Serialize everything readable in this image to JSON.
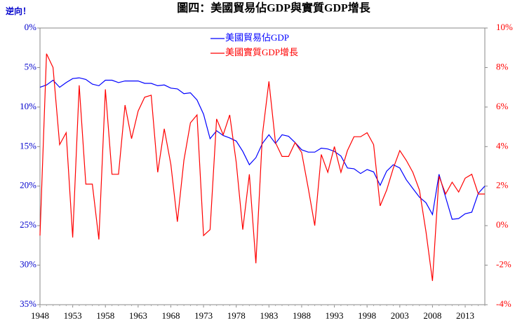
{
  "chart_data": {
    "type": "line",
    "title": "圖四：美國貿易佔GDP與實質GDP增長",
    "annotation": "逆向！",
    "x": [
      1948,
      1949,
      1950,
      1951,
      1952,
      1953,
      1954,
      1955,
      1956,
      1957,
      1958,
      1959,
      1960,
      1961,
      1962,
      1963,
      1964,
      1965,
      1966,
      1967,
      1968,
      1969,
      1970,
      1971,
      1972,
      1973,
      1974,
      1975,
      1976,
      1977,
      1978,
      1979,
      1980,
      1981,
      1982,
      1983,
      1984,
      1985,
      1986,
      1987,
      1988,
      1989,
      1990,
      1991,
      1992,
      1993,
      1994,
      1995,
      1996,
      1997,
      1998,
      1999,
      2000,
      2001,
      2002,
      2003,
      2004,
      2005,
      2006,
      2007,
      2008,
      2009,
      2010,
      2011,
      2012,
      2013,
      2014,
      2015,
      2016
    ],
    "xlim": [
      1948,
      2016
    ],
    "xticks": [
      1948,
      1953,
      1958,
      1963,
      1968,
      1973,
      1978,
      1983,
      1988,
      1993,
      1998,
      2003,
      2008,
      2013
    ],
    "ylim": [
      0,
      35
    ],
    "y_inverted": true,
    "yticks": [
      {
        "value": 0,
        "label": "0%"
      },
      {
        "value": 5,
        "label": "5%"
      },
      {
        "value": 10,
        "label": "10%"
      },
      {
        "value": 15,
        "label": "15%"
      },
      {
        "value": 20,
        "label": "20%"
      },
      {
        "value": 25,
        "label": "25%"
      },
      {
        "value": 30,
        "label": "30%"
      },
      {
        "value": 35,
        "label": "35%"
      }
    ],
    "y2lim": [
      -4,
      10
    ],
    "y2ticks": [
      {
        "value": -4,
        "label": "-4%"
      },
      {
        "value": -2,
        "label": "-2%"
      },
      {
        "value": 0,
        "label": "0%"
      },
      {
        "value": 2,
        "label": "2%"
      },
      {
        "value": 4,
        "label": "4%"
      },
      {
        "value": 6,
        "label": "6%"
      },
      {
        "value": 8,
        "label": "8%"
      },
      {
        "value": 10,
        "label": "10%"
      }
    ],
    "y_color": "#0000cc",
    "y2_color": "#ff0000",
    "legend": "top",
    "series": [
      {
        "name": "美國貿易佔GDP",
        "color": "#0000ff",
        "axis": "y",
        "values": [
          7.5,
          7.2,
          6.6,
          7.5,
          6.9,
          6.4,
          6.3,
          6.5,
          7.1,
          7.3,
          6.6,
          6.6,
          6.9,
          6.7,
          6.7,
          6.7,
          7.0,
          7.0,
          7.3,
          7.2,
          7.6,
          7.7,
          8.3,
          8.2,
          9.1,
          10.9,
          14.0,
          13.0,
          13.6,
          13.9,
          14.3,
          15.6,
          17.3,
          16.4,
          14.6,
          13.5,
          14.6,
          13.5,
          13.7,
          14.5,
          15.4,
          15.7,
          15.7,
          15.2,
          15.3,
          15.6,
          16.2,
          17.7,
          17.8,
          18.4,
          17.9,
          18.2,
          19.9,
          18.1,
          17.3,
          17.7,
          19.2,
          20.3,
          21.4,
          22.1,
          23.6,
          18.5,
          21.4,
          24.2,
          24.1,
          23.5,
          23.3,
          20.9,
          20.0
        ]
      },
      {
        "name": "美國實質GDP增長",
        "color": "#ff0000",
        "axis": "y2",
        "values": [
          -0.5,
          8.7,
          8.0,
          4.1,
          4.7,
          -0.6,
          7.1,
          2.1,
          2.1,
          -0.7,
          6.9,
          2.6,
          2.6,
          6.1,
          4.4,
          5.8,
          6.5,
          6.6,
          2.7,
          4.9,
          3.1,
          0.2,
          3.3,
          5.2,
          5.6,
          -0.5,
          -0.2,
          5.4,
          4.6,
          5.6,
          3.2,
          -0.2,
          2.6,
          -1.9,
          4.6,
          7.3,
          4.2,
          3.5,
          3.5,
          4.2,
          3.7,
          1.9,
          0.0,
          3.6,
          2.7,
          4.0,
          2.7,
          3.8,
          4.5,
          4.5,
          4.7,
          4.1,
          1.0,
          1.8,
          2.9,
          3.8,
          3.3,
          2.7,
          1.8,
          -0.3,
          -2.8,
          2.5,
          1.6,
          2.2,
          1.7,
          2.4,
          2.6,
          1.6,
          1.6
        ]
      }
    ]
  }
}
